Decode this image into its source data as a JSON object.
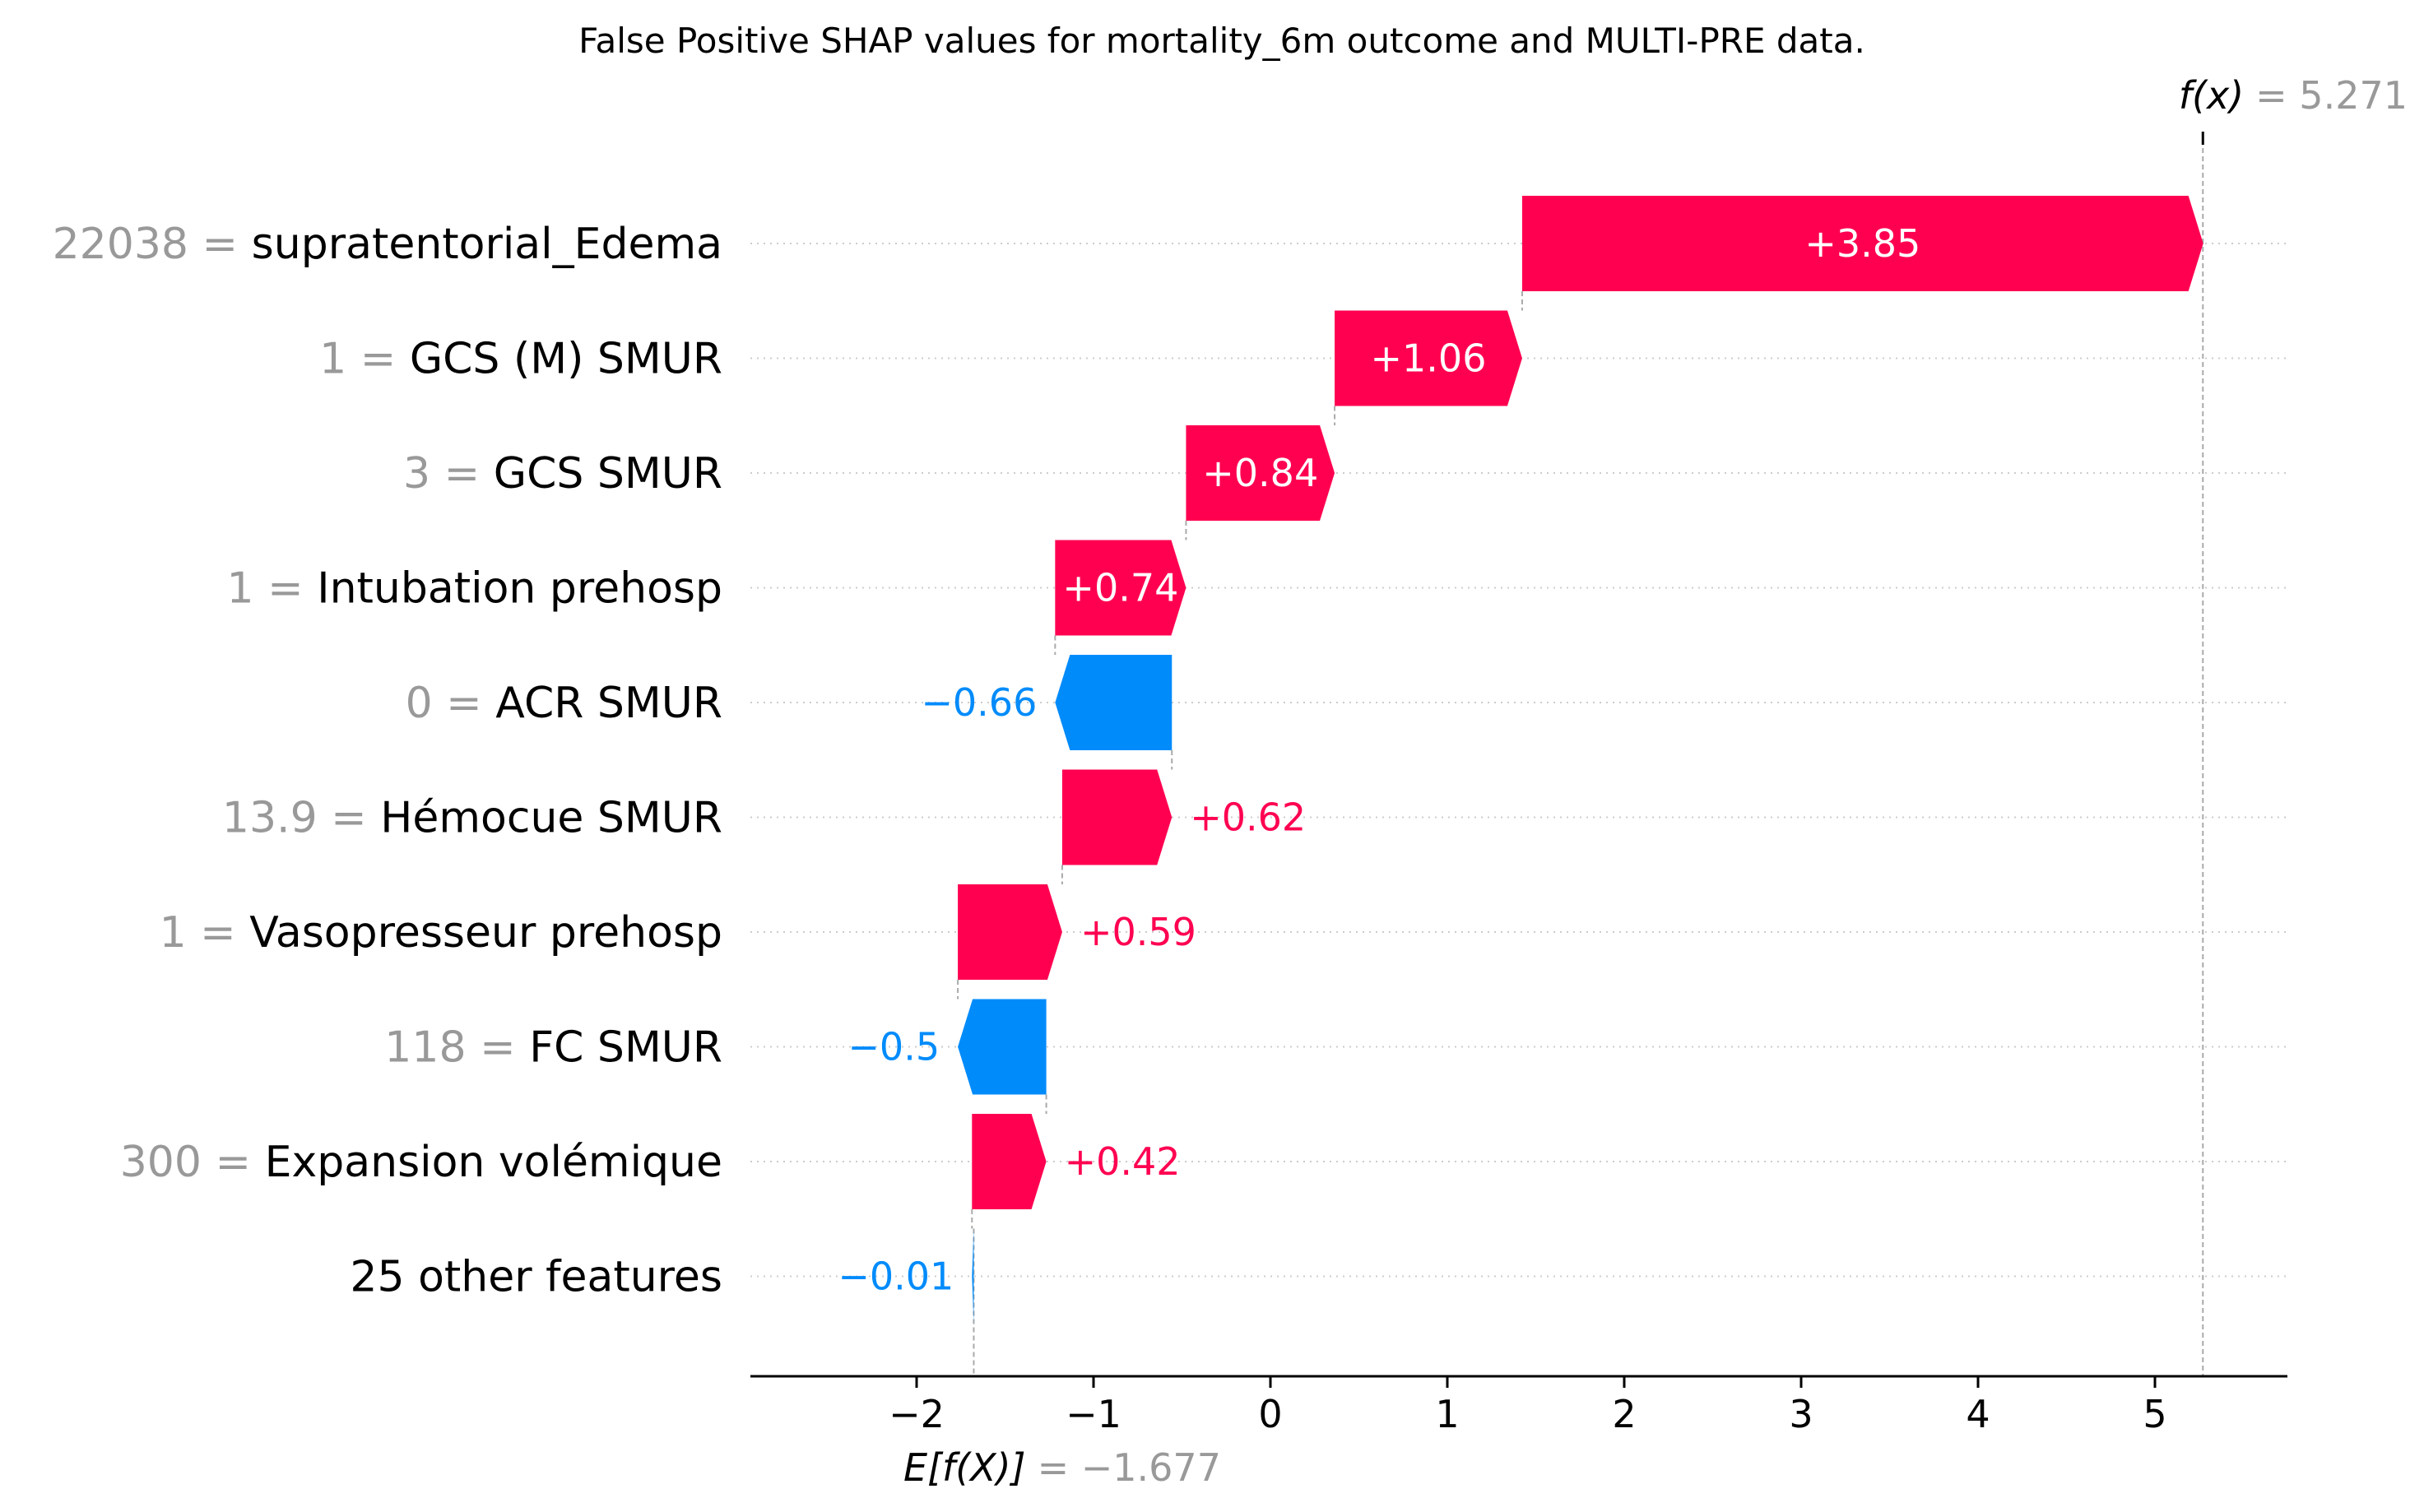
{
  "chart_data": {
    "type": "waterfall",
    "title": "False Positive SHAP values for mortality_6m outcome and MULTI-PRE data.",
    "base_value": -1.677,
    "base_label_prefix": "E[f(X)]",
    "base_label_value": "= −1.677",
    "output_value": 5.271,
    "output_label_prefix": "f(x)",
    "output_label_value": "= 5.271",
    "xlim": [
      -2.95,
      5.75
    ],
    "xticks": [
      -2,
      -1,
      0,
      1,
      2,
      3,
      4,
      5
    ],
    "xtick_labels": [
      "−2",
      "−1",
      "0",
      "1",
      "2",
      "3",
      "4",
      "5"
    ],
    "colors": {
      "positive": "#ff0051",
      "negative": "#008bfb",
      "grid": "#cccccc",
      "value_text": "#999999"
    },
    "features": [
      {
        "value": "22038",
        "name": "supratentorial_Edema",
        "shap": 3.85,
        "label": "+3.85"
      },
      {
        "value": "1",
        "name": "GCS (M) SMUR",
        "shap": 1.06,
        "label": "+1.06"
      },
      {
        "value": "3",
        "name": "GCS SMUR",
        "shap": 0.84,
        "label": "+0.84"
      },
      {
        "value": "1",
        "name": "Intubation prehosp",
        "shap": 0.74,
        "label": "+0.74"
      },
      {
        "value": "0",
        "name": "ACR SMUR",
        "shap": -0.66,
        "label": "−0.66"
      },
      {
        "value": "13.9",
        "name": "Hémocue SMUR",
        "shap": 0.62,
        "label": "+0.62"
      },
      {
        "value": "1",
        "name": "Vasopresseur prehosp",
        "shap": 0.59,
        "label": "+0.59"
      },
      {
        "value": "118",
        "name": "FC SMUR",
        "shap": -0.5,
        "label": "−0.5"
      },
      {
        "value": "300",
        "name": "Expansion volémique",
        "shap": 0.42,
        "label": "+0.42"
      },
      {
        "value": "",
        "name": "25 other features",
        "shap": -0.01,
        "label": "−0.01"
      }
    ]
  }
}
